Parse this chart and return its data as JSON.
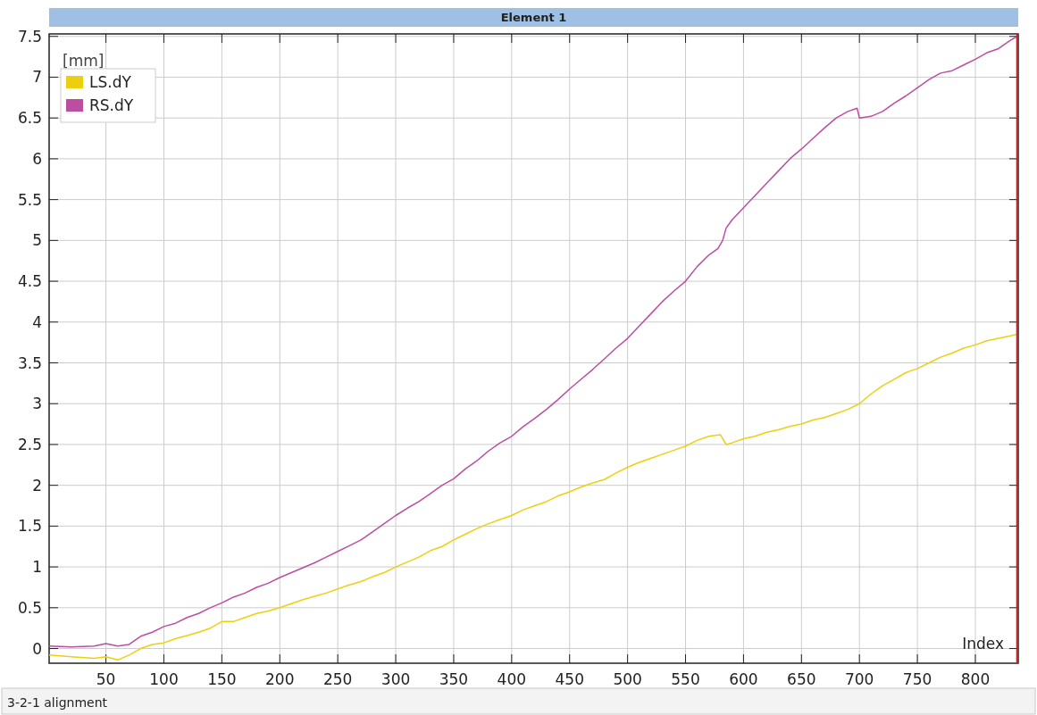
{
  "chart_data": {
    "type": "line",
    "title": "Element 1",
    "xlabel": "Index",
    "legend_title": "[mm]",
    "annotations": [
      "3-2-1 alignment"
    ],
    "xlim": [
      1,
      837
    ],
    "xticks": [
      50,
      100,
      150,
      200,
      250,
      300,
      350,
      400,
      450,
      500,
      550,
      600,
      650,
      700,
      750,
      800
    ],
    "ylim": [
      -0.18,
      7.53
    ],
    "yticks": [
      0,
      0.5,
      1,
      1.5,
      2,
      2.5,
      3,
      3.5,
      4,
      4.5,
      5,
      5.5,
      6,
      6.5,
      7,
      7.5
    ],
    "grid": true,
    "legend": "top left",
    "ref_lines": [
      {
        "axis": "x",
        "value": 836,
        "color": "#c0272d"
      }
    ],
    "series": [
      {
        "name": "LS.dY",
        "color": "#ecd00f",
        "x": [
          1,
          20,
          40,
          50,
          60,
          70,
          80,
          90,
          100,
          110,
          120,
          130,
          140,
          150,
          160,
          170,
          180,
          190,
          200,
          210,
          220,
          230,
          240,
          250,
          260,
          270,
          280,
          290,
          300,
          310,
          320,
          330,
          340,
          350,
          360,
          370,
          380,
          390,
          400,
          410,
          420,
          430,
          440,
          450,
          460,
          470,
          480,
          490,
          500,
          510,
          520,
          530,
          540,
          550,
          560,
          570,
          580,
          585,
          590,
          600,
          610,
          620,
          630,
          640,
          650,
          660,
          670,
          680,
          690,
          700,
          710,
          720,
          730,
          740,
          750,
          760,
          770,
          780,
          790,
          800,
          810,
          820,
          830,
          836
        ],
        "values": [
          -0.08,
          -0.1,
          -0.12,
          -0.1,
          -0.14,
          -0.08,
          0.0,
          0.05,
          0.07,
          0.12,
          0.16,
          0.2,
          0.25,
          0.33,
          0.33,
          0.38,
          0.43,
          0.46,
          0.5,
          0.55,
          0.6,
          0.64,
          0.68,
          0.73,
          0.78,
          0.82,
          0.88,
          0.93,
          1.0,
          1.06,
          1.12,
          1.2,
          1.25,
          1.33,
          1.4,
          1.47,
          1.53,
          1.58,
          1.63,
          1.7,
          1.75,
          1.8,
          1.87,
          1.92,
          1.98,
          2.03,
          2.07,
          2.15,
          2.22,
          2.28,
          2.33,
          2.38,
          2.43,
          2.48,
          2.55,
          2.6,
          2.62,
          2.5,
          2.52,
          2.57,
          2.6,
          2.65,
          2.68,
          2.72,
          2.75,
          2.8,
          2.83,
          2.88,
          2.93,
          3.0,
          3.12,
          3.22,
          3.3,
          3.38,
          3.43,
          3.5,
          3.57,
          3.62,
          3.68,
          3.72,
          3.77,
          3.8,
          3.83,
          3.85
        ]
      },
      {
        "name": "RS.dY",
        "color": "#bb4ea0",
        "x": [
          1,
          20,
          40,
          50,
          60,
          70,
          80,
          90,
          100,
          110,
          120,
          130,
          140,
          150,
          160,
          170,
          180,
          190,
          200,
          210,
          220,
          230,
          240,
          250,
          260,
          270,
          280,
          290,
          300,
          310,
          320,
          330,
          340,
          350,
          360,
          370,
          380,
          390,
          400,
          410,
          420,
          430,
          440,
          450,
          460,
          470,
          480,
          490,
          500,
          510,
          520,
          530,
          540,
          550,
          560,
          570,
          578,
          582,
          585,
          590,
          600,
          610,
          620,
          630,
          640,
          650,
          660,
          670,
          680,
          690,
          698,
          700,
          710,
          720,
          730,
          740,
          750,
          760,
          770,
          780,
          790,
          800,
          810,
          820,
          830,
          836
        ],
        "values": [
          0.03,
          0.02,
          0.03,
          0.06,
          0.03,
          0.05,
          0.15,
          0.2,
          0.27,
          0.31,
          0.38,
          0.43,
          0.5,
          0.56,
          0.63,
          0.68,
          0.75,
          0.8,
          0.87,
          0.93,
          0.99,
          1.05,
          1.12,
          1.19,
          1.26,
          1.33,
          1.43,
          1.53,
          1.63,
          1.72,
          1.8,
          1.9,
          2.0,
          2.08,
          2.2,
          2.3,
          2.42,
          2.52,
          2.6,
          2.72,
          2.82,
          2.93,
          3.05,
          3.18,
          3.3,
          3.42,
          3.55,
          3.68,
          3.8,
          3.95,
          4.1,
          4.25,
          4.38,
          4.5,
          4.68,
          4.82,
          4.9,
          5.0,
          5.15,
          5.25,
          5.4,
          5.55,
          5.7,
          5.85,
          6.0,
          6.12,
          6.25,
          6.38,
          6.5,
          6.58,
          6.62,
          6.5,
          6.52,
          6.58,
          6.68,
          6.77,
          6.87,
          6.97,
          7.05,
          7.08,
          7.15,
          7.22,
          7.3,
          7.35,
          7.45,
          7.5
        ]
      }
    ]
  }
}
